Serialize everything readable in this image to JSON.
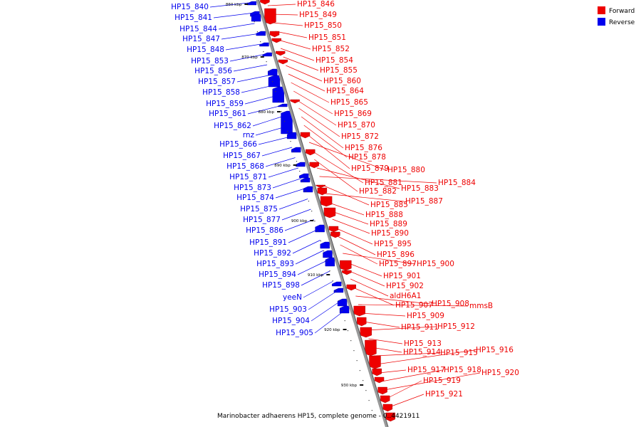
{
  "caption": "Marinobacter adhaerens HP15, complete genome - 0..4421911",
  "legend": [
    {
      "label": "Forward",
      "color": "#ee0000"
    },
    {
      "label": "Reverse",
      "color": "#0000ee"
    }
  ],
  "colors": {
    "forward": "#ee0000",
    "reverse": "#0000ee",
    "backbone": "#999999"
  },
  "ticks": [
    "860 kbp",
    "870 kbp",
    "880 kbp",
    "890 kbp",
    "900 kbp",
    "910 kbp",
    "920 kbp",
    "930 kbp"
  ],
  "forward_labels": [
    "HP15_846",
    "HP15_849",
    "HP15_850",
    "HP15_851",
    "HP15_852",
    "HP15_854",
    "HP15_855",
    "HP15_860",
    "HP15_864",
    "HP15_865",
    "HP15_869",
    "HP15_870",
    "HP15_872",
    "HP15_876",
    "HP15_878",
    "HP15_879",
    "HP15_880",
    "HP15_881",
    "HP15_882",
    "HP15_883",
    "HP15_884",
    "HP15_885",
    "HP15_887",
    "HP15_888",
    "HP15_889",
    "HP15_890",
    "HP15_895",
    "HP15_896",
    "HP15_897",
    "HP15_900",
    "HP15_901",
    "HP15_902",
    "aldH6A1",
    "HP15_907",
    "HP15_908",
    "mmsB",
    "HP15_909",
    "HP15_911",
    "HP15_912",
    "HP15_913",
    "HP15_914",
    "HP15_915",
    "HP15_916",
    "HP15_917",
    "HP15_918",
    "HP15_920",
    "HP15_919",
    "HP15_921"
  ],
  "reverse_labels": [
    "HP15_840",
    "HP15_841",
    "HP15_844",
    "HP15_847",
    "HP15_848",
    "HP15_853",
    "HP15_856",
    "HP15_857",
    "HP15_858",
    "HP15_859",
    "HP15_861",
    "HP15_862",
    "rnz",
    "HP15_866",
    "HP15_867",
    "HP15_868",
    "HP15_871",
    "HP15_873",
    "HP15_874",
    "HP15_875",
    "HP15_877",
    "HP15_886",
    "HP15_891",
    "HP15_892",
    "HP15_893",
    "HP15_894",
    "HP15_898",
    "yeeN",
    "HP15_903",
    "HP15_904",
    "HP15_905"
  ]
}
